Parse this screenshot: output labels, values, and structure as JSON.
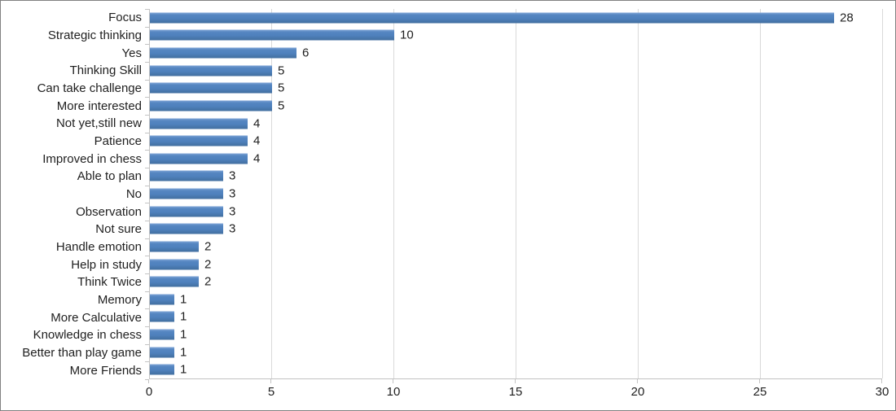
{
  "chart_data": {
    "type": "bar",
    "orientation": "horizontal",
    "title": "",
    "xlabel": "",
    "ylabel": "",
    "categories": [
      "Focus",
      "Strategic thinking",
      "Yes",
      "Thinking Skill",
      "Can take challenge",
      "More interested",
      "Not yet,still new",
      "Patience",
      "Improved in chess",
      "Able to plan",
      "No",
      "Observation",
      "Not sure",
      "Handle emotion",
      "Help in study",
      "Think Twice",
      "Memory",
      "More Calculative",
      "Knowledge in chess",
      "Better than play game",
      "More Friends"
    ],
    "values": [
      28,
      10,
      6,
      5,
      5,
      5,
      4,
      4,
      4,
      3,
      3,
      3,
      3,
      2,
      2,
      2,
      1,
      1,
      1,
      1,
      1
    ],
    "xlim": [
      0,
      30
    ],
    "x_ticks": [
      0,
      5,
      10,
      15,
      20,
      25,
      30
    ],
    "grid": true,
    "data_labels": true,
    "legend": "none",
    "colors": {
      "bar": "#4f81bd",
      "gridline": "#d9d9d9",
      "axis": "#c3c3c3",
      "text": "#1f1f1f",
      "background": "#ffffff",
      "frame_border": "#818181"
    }
  }
}
